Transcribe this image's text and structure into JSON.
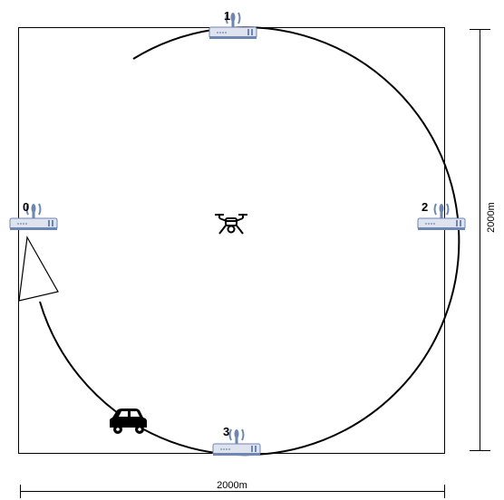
{
  "diagram": {
    "stations": [
      {
        "id": "0"
      },
      {
        "id": "1"
      },
      {
        "id": "2"
      },
      {
        "id": "3"
      }
    ],
    "dimensions": {
      "width_label": "2000m",
      "height_label": "2000m"
    },
    "icons": {
      "station": "wifi-router-icon",
      "center": "drone-icon",
      "vehicle": "car-icon",
      "direction": "arrow-head-icon"
    },
    "colors": {
      "router_body": "#dfe3ee",
      "router_accent": "#6d86b4",
      "line": "#000000"
    }
  }
}
